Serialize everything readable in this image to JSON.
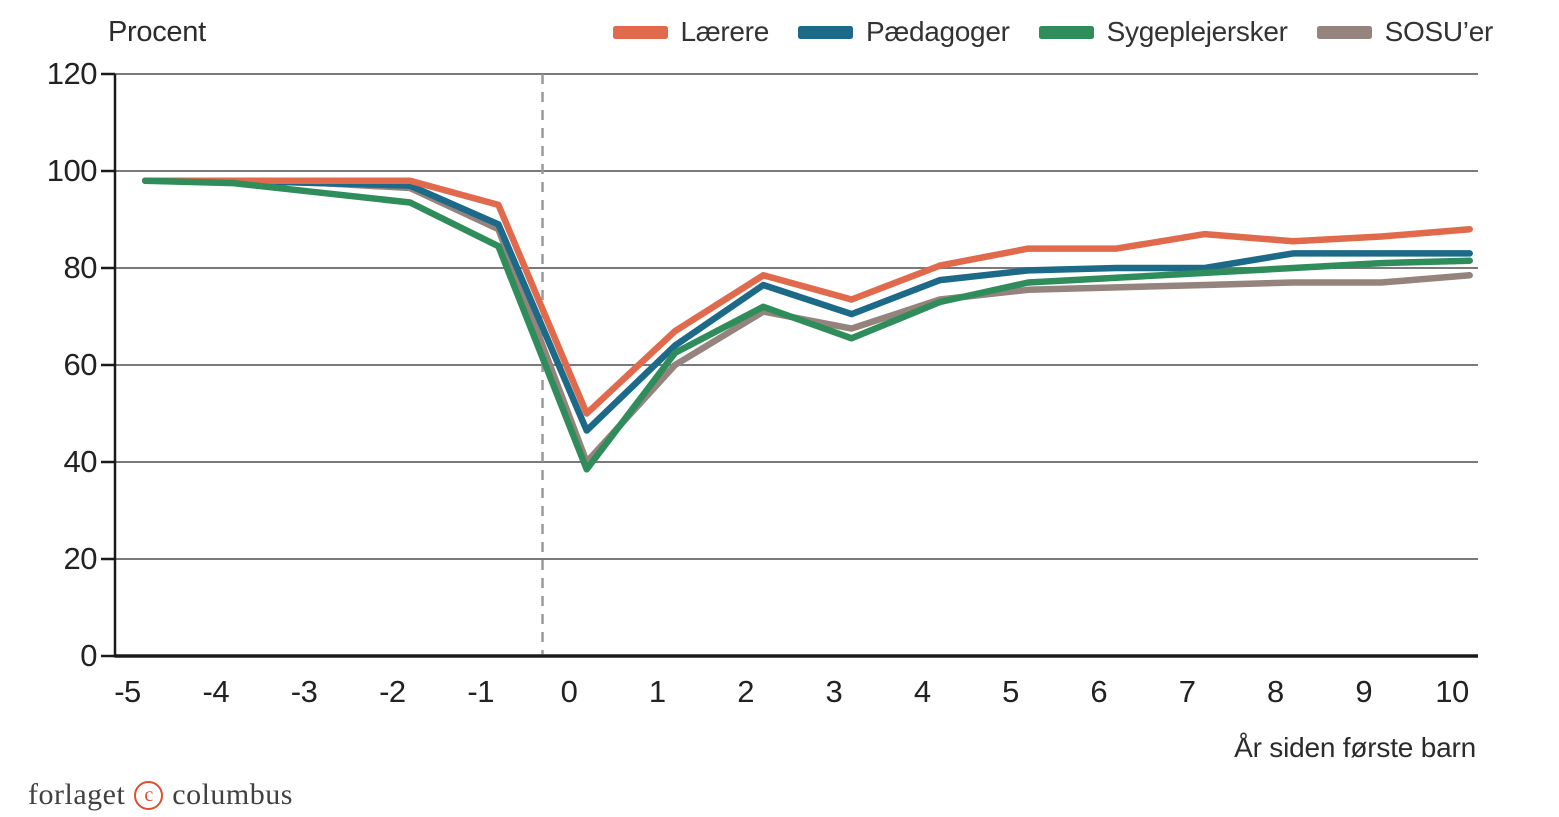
{
  "chart_data": {
    "type": "line",
    "ylabel": "Procent",
    "xlabel": "År siden første barn",
    "ylim": [
      0,
      120
    ],
    "y_ticks": [
      0,
      20,
      40,
      60,
      80,
      100,
      120
    ],
    "x_ticks": [
      -5,
      -4,
      -3,
      -2,
      -1,
      0,
      1,
      2,
      3,
      4,
      5,
      6,
      7,
      8,
      9,
      10
    ],
    "x_unit": "år siden første barn (event-tid)",
    "x_plot_offset": 0.2,
    "event_line_x": -0.3,
    "grid": "horizontal-only",
    "legend_position": "top-right",
    "draw_order": [
      3,
      1,
      0,
      2
    ],
    "series": [
      {
        "name": "Lærere",
        "color": "#E06A4B",
        "values": [
          98,
          98,
          98,
          98,
          93,
          50,
          67,
          78.5,
          73.5,
          80.5,
          84,
          84,
          87,
          85.5,
          86.5,
          88
        ]
      },
      {
        "name": "Pædagoger",
        "color": "#1C6A88",
        "values": [
          98,
          98,
          97.5,
          97,
          89,
          46.5,
          64,
          76.5,
          70.5,
          77.5,
          79.5,
          80,
          80,
          83,
          83,
          83
        ]
      },
      {
        "name": "Sygeplejersker",
        "color": "#2F8C5B",
        "values": [
          98,
          97.5,
          95.5,
          93.5,
          84.5,
          38.5,
          62.5,
          72,
          65.5,
          73,
          77,
          78,
          79,
          80,
          81,
          81.5
        ]
      },
      {
        "name": "SOSU’er",
        "color": "#95837D",
        "values": [
          98,
          98,
          97.5,
          96.5,
          88,
          40,
          60,
          71,
          67.5,
          73.5,
          75.5,
          76,
          76.5,
          77,
          77,
          78.5
        ]
      }
    ]
  },
  "colors": {
    "grid_line": "#7a7a7a",
    "axis_line": "#1a1a1a",
    "dashed_event_line": "#9a9a9a",
    "accent_red": "#e0502e"
  },
  "footer": {
    "logo_text_1": "forlaget",
    "logo_symbol": "c",
    "logo_text_2": "columbus"
  }
}
